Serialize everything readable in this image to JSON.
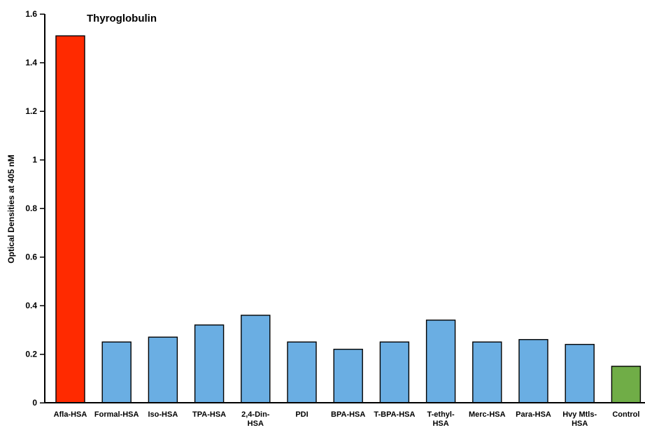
{
  "chart_data": {
    "type": "bar",
    "title": "Thyroglobulin",
    "xlabel": "",
    "ylabel": "Optical Densities at 405 nM",
    "ylim": [
      0,
      1.6
    ],
    "yticks": [
      "0",
      "0.2",
      "0.4",
      "0.6",
      "0.8",
      "1",
      "1.2",
      "1.4",
      "1.6"
    ],
    "grid": false,
    "categories": [
      "Afla-HSA",
      "Formal-HSA",
      "Iso-HSA",
      "TPA-HSA",
      "2,4-Din-\nHSA",
      "PDI",
      "BPA-HSA",
      "T-BPA-HSA",
      "T-ethyl-\nHSA",
      "Merc-HSA",
      "Para-HSA",
      "Hvy Mtls-\nHSA",
      "Control"
    ],
    "values": [
      1.51,
      0.25,
      0.27,
      0.32,
      0.36,
      0.25,
      0.22,
      0.25,
      0.34,
      0.25,
      0.26,
      0.24,
      0.15
    ],
    "bar_colors": [
      "#ff2a00",
      "#6aaee3",
      "#6aaee3",
      "#6aaee3",
      "#6aaee3",
      "#6aaee3",
      "#6aaee3",
      "#6aaee3",
      "#6aaee3",
      "#6aaee3",
      "#6aaee3",
      "#6aaee3",
      "#70ad47"
    ]
  }
}
